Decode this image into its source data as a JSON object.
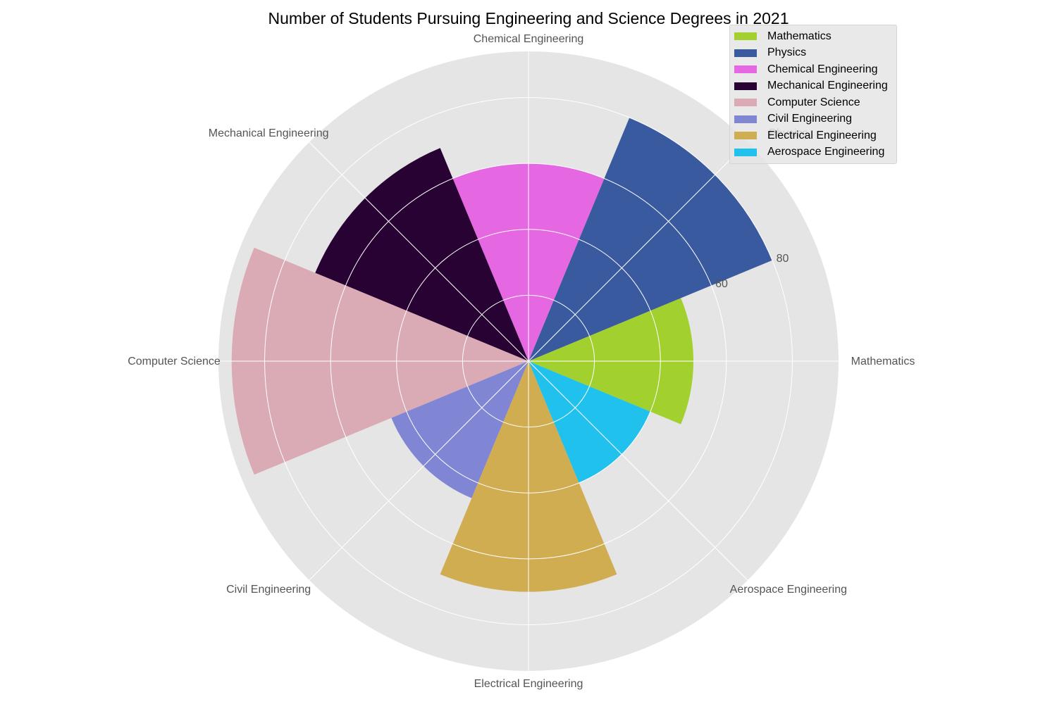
{
  "chart_data": {
    "type": "polar-bar",
    "title": "Number of Students Pursuing Engineering and Science Degrees in 2021",
    "categories": [
      "Mathematics",
      "Physics",
      "Chemical Engineering",
      "Mechanical Engineering",
      "Computer Science",
      "Civil Engineering",
      "Electrical Engineering",
      "Aerospace Engineering"
    ],
    "values": [
      50,
      80,
      60,
      70,
      90,
      45,
      70,
      40
    ],
    "colors": [
      "#a2d12f",
      "#3a5aa0",
      "#e667e2",
      "#270232",
      "#daaab5",
      "#8186d4",
      "#d1ad51",
      "#20c1ec"
    ],
    "radial_ticks": [
      60,
      80
    ],
    "rmax": 94,
    "grid": true,
    "legend": "top-right"
  }
}
